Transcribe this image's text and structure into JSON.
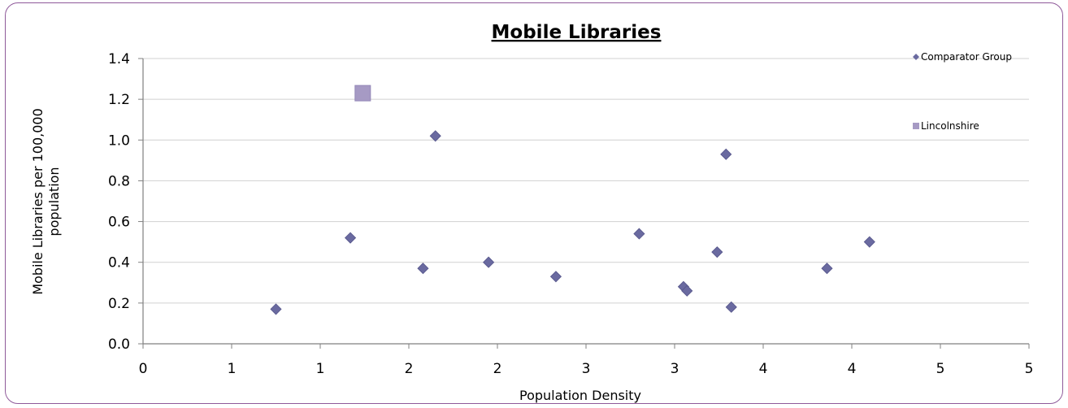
{
  "chart_data": {
    "type": "scatter",
    "title": "Mobile Libraries",
    "xlabel": "Population Density",
    "ylabel_lines": [
      "Mobile Libraries per 100,000",
      "population"
    ],
    "xlim": [
      0,
      5
    ],
    "ylim": [
      0,
      1.4
    ],
    "x_tick_values": [
      0,
      0.5,
      1,
      1.5,
      2,
      2.5,
      3,
      3.5,
      4,
      4.5,
      5
    ],
    "x_tick_labels": [
      "0",
      "1",
      "1",
      "2",
      "2",
      "3",
      "3",
      "4",
      "4",
      "5",
      "5"
    ],
    "y_tick_values": [
      0,
      0.2,
      0.4,
      0.6,
      0.8,
      1.0,
      1.2,
      1.4
    ],
    "y_tick_labels": [
      "0.0",
      "0.2",
      "0.4",
      "0.6",
      "0.8",
      "1.0",
      "1.2",
      "1.4"
    ],
    "grid": "horizontal",
    "legend_position": "top-right",
    "series": [
      {
        "name": "Comparator Group",
        "marker": "diamond",
        "color": "#6a6aa0",
        "points": [
          [
            0.75,
            0.17
          ],
          [
            1.17,
            0.52
          ],
          [
            1.58,
            0.37
          ],
          [
            1.65,
            1.02
          ],
          [
            1.95,
            0.4
          ],
          [
            2.33,
            0.33
          ],
          [
            2.8,
            0.54
          ],
          [
            3.05,
            0.28
          ],
          [
            3.07,
            0.26
          ],
          [
            3.24,
            0.45
          ],
          [
            3.29,
            0.93
          ],
          [
            3.32,
            0.18
          ],
          [
            3.86,
            0.37
          ],
          [
            4.1,
            0.5
          ]
        ]
      },
      {
        "name": "Lincolnshire",
        "marker": "square",
        "color": "#a69ac4",
        "points": [
          [
            1.24,
            1.23
          ]
        ]
      }
    ]
  }
}
